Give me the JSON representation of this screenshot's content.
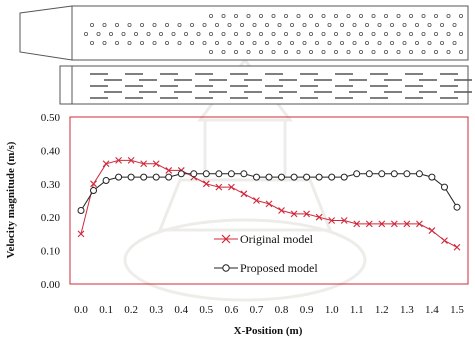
{
  "chart_data": {
    "type": "line",
    "title": "",
    "xlabel": "X-Position (m)",
    "ylabel": "Velocity magnitude (m/s)",
    "xlim": [
      0.0,
      1.5
    ],
    "ylim": [
      0.0,
      0.5
    ],
    "x_ticks": [
      "0.0",
      "0.1",
      "0.2",
      "0.3",
      "0.4",
      "0.5",
      "0.6",
      "0.7",
      "0.8",
      "0.9",
      "1.0",
      "1.1",
      "1.2",
      "1.3",
      "1.4",
      "1.5"
    ],
    "y_ticks": [
      "0.00",
      "0.10",
      "0.20",
      "0.30",
      "0.40",
      "0.50"
    ],
    "grid": false,
    "legend_position": "lower-center",
    "series": [
      {
        "name": "Original model",
        "color": "#d0283a",
        "marker": "cross",
        "x": [
          0.0,
          0.05,
          0.1,
          0.15,
          0.2,
          0.25,
          0.3,
          0.35,
          0.4,
          0.45,
          0.5,
          0.55,
          0.6,
          0.65,
          0.7,
          0.75,
          0.8,
          0.85,
          0.9,
          0.95,
          1.0,
          1.05,
          1.1,
          1.15,
          1.2,
          1.25,
          1.3,
          1.35,
          1.4,
          1.45,
          1.5
        ],
        "y": [
          0.15,
          0.3,
          0.36,
          0.37,
          0.37,
          0.36,
          0.36,
          0.34,
          0.34,
          0.32,
          0.3,
          0.29,
          0.29,
          0.27,
          0.25,
          0.24,
          0.22,
          0.21,
          0.21,
          0.2,
          0.19,
          0.19,
          0.18,
          0.18,
          0.18,
          0.18,
          0.18,
          0.18,
          0.16,
          0.13,
          0.11
        ]
      },
      {
        "name": "Proposed model",
        "color": "#222222",
        "marker": "circle",
        "x": [
          0.0,
          0.05,
          0.1,
          0.15,
          0.2,
          0.25,
          0.3,
          0.35,
          0.4,
          0.45,
          0.5,
          0.55,
          0.6,
          0.65,
          0.7,
          0.75,
          0.8,
          0.85,
          0.9,
          0.95,
          1.0,
          1.05,
          1.1,
          1.15,
          1.2,
          1.25,
          1.3,
          1.35,
          1.4,
          1.45,
          1.5
        ],
        "y": [
          0.22,
          0.28,
          0.31,
          0.32,
          0.32,
          0.32,
          0.32,
          0.32,
          0.33,
          0.33,
          0.33,
          0.33,
          0.33,
          0.33,
          0.32,
          0.32,
          0.32,
          0.32,
          0.32,
          0.32,
          0.32,
          0.32,
          0.33,
          0.33,
          0.33,
          0.33,
          0.33,
          0.33,
          0.32,
          0.29,
          0.23
        ]
      }
    ]
  },
  "colors": {
    "frame": "#d0283a",
    "axis_text": "#111111",
    "duct_outline": "#555555",
    "holes": "#555555"
  }
}
